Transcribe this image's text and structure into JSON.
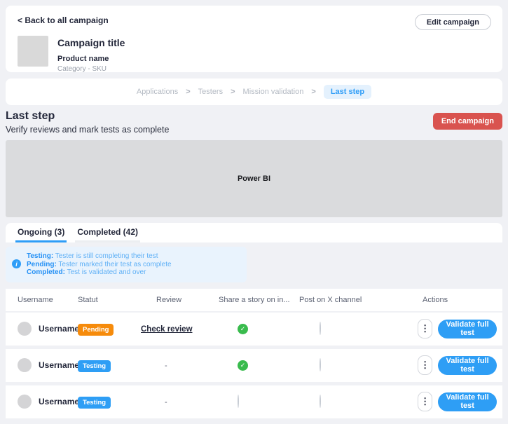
{
  "colors": {
    "accent_blue": "#2e9ef5",
    "pending_orange": "#f68b0b",
    "testing_blue": "#2e9ef5",
    "end_red": "#d9534f",
    "check_green": "#39bb4d"
  },
  "icons": {
    "info_glyph": "i",
    "check_glyph": "✓",
    "kebab_glyph": "⋮"
  },
  "header": {
    "back_link": "< Back to all campaign",
    "edit_button": "Edit campaign",
    "campaign_title": "Campaign title",
    "product_name": "Product name",
    "category_sku": "Category - SKU"
  },
  "breadcrumb": {
    "separator": ">",
    "items": [
      "Applications",
      "Testers",
      "Mission validation"
    ],
    "active": "Last step"
  },
  "section": {
    "title": "Last step",
    "subtitle": "Verify reviews and mark tests as complete",
    "end_button": "End campaign",
    "powerbi_label": "Power BI"
  },
  "tabs": [
    {
      "label": "Ongoing (3)",
      "active": true
    },
    {
      "label": "Completed (42)",
      "active": false
    }
  ],
  "info_box": {
    "lines": [
      {
        "term": "Testing:",
        "desc": "Tester is still completing their test"
      },
      {
        "term": "Pending:",
        "desc": "Tester marked their test as complete"
      },
      {
        "term": "Completed:",
        "desc": "Test is validated and over"
      }
    ]
  },
  "table": {
    "headers": [
      "Username",
      "Statut",
      "Review",
      "Share a story on in...",
      "Post on X channel",
      "Actions"
    ],
    "rows": [
      {
        "username": "Username",
        "status": "Pending",
        "status_color": "#f68b0b",
        "review": "Check review",
        "review_is_link": true,
        "story": "checked",
        "post_x": "unchecked",
        "action": "Validate full test"
      },
      {
        "username": "Username",
        "status": "Testing",
        "status_color": "#2e9ef5",
        "review": "-",
        "review_is_link": false,
        "story": "checked",
        "post_x": "unchecked",
        "action": "Validate full test"
      },
      {
        "username": "Username",
        "status": "Testing",
        "status_color": "#2e9ef5",
        "review": "-",
        "review_is_link": false,
        "story": "unchecked",
        "post_x": "unchecked",
        "action": "Validate full test"
      }
    ]
  }
}
